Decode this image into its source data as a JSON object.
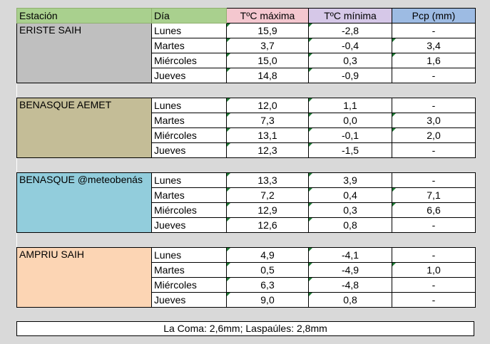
{
  "header": {
    "station": "Estación",
    "day": "Día",
    "tmax": "TºC máxima",
    "tmin": "TºC mínima",
    "pcp": "Pcp (mm)"
  },
  "colors": {
    "header_green": "#a9d08e",
    "header_pink": "#f4c7cf",
    "header_lilac": "#d6c8e8",
    "header_blue": "#9dbbe3",
    "eriste": "#bfbfbf",
    "benasque_aemet": "#c4bd97",
    "benasque_meteo": "#92cddc",
    "ampriu": "#fcd5b4"
  },
  "stations": [
    {
      "name": "ERISTE SAIH",
      "color": "#bfbfbf",
      "rows": [
        {
          "day": "Lunes",
          "tmax": "15,9",
          "tmin": "-2,8",
          "pcp": "-"
        },
        {
          "day": "Martes",
          "tmax": "3,7",
          "tmin": "-0,4",
          "pcp": "3,4"
        },
        {
          "day": "Miércoles",
          "tmax": "15,0",
          "tmin": "0,3",
          "pcp": "1,6"
        },
        {
          "day": "Jueves",
          "tmax": "14,8",
          "tmin": "-0,9",
          "pcp": "-"
        }
      ]
    },
    {
      "name": "BENASQUE AEMET",
      "color": "#c4bd97",
      "rows": [
        {
          "day": "Lunes",
          "tmax": "12,0",
          "tmin": "1,1",
          "pcp": "-"
        },
        {
          "day": "Martes",
          "tmax": "7,3",
          "tmin": "0,0",
          "pcp": "3,0"
        },
        {
          "day": "Miércoles",
          "tmax": "13,1",
          "tmin": "-0,1",
          "pcp": "2,0"
        },
        {
          "day": "Jueves",
          "tmax": "12,3",
          "tmin": "-1,5",
          "pcp": "-"
        }
      ]
    },
    {
      "name": "BENASQUE @meteobenás",
      "color": "#92cddc",
      "rows": [
        {
          "day": "Lunes",
          "tmax": "13,3",
          "tmin": "3,9",
          "pcp": "-"
        },
        {
          "day": "Martes",
          "tmax": "7,2",
          "tmin": "0,4",
          "pcp": "7,1"
        },
        {
          "day": "Miércoles",
          "tmax": "12,9",
          "tmin": "0,3",
          "pcp": "6,6"
        },
        {
          "day": "Jueves",
          "tmax": "12,6",
          "tmin": "0,8",
          "pcp": "-"
        }
      ]
    },
    {
      "name": "AMPRIU SAIH",
      "color": "#fcd5b4",
      "rows": [
        {
          "day": "Lunes",
          "tmax": "4,9",
          "tmin": "-4,1",
          "pcp": "-"
        },
        {
          "day": "Martes",
          "tmax": "0,5",
          "tmin": "-4,9",
          "pcp": "1,0"
        },
        {
          "day": "Miércoles",
          "tmax": "6,3",
          "tmin": "-4,8",
          "pcp": "-"
        },
        {
          "day": "Jueves",
          "tmax": "9,0",
          "tmin": "0,8",
          "pcp": "-"
        }
      ]
    }
  ],
  "note": "La Coma: 2,6mm; Laspaúles: 2,8mm"
}
